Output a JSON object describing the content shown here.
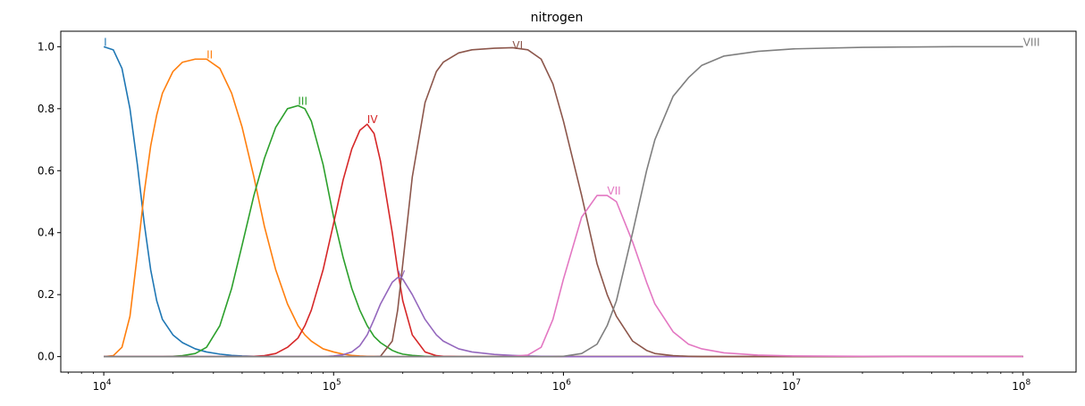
{
  "chart_data": {
    "type": "line",
    "title": "nitrogen",
    "xlabel": "",
    "ylabel": "",
    "x_scale": "log",
    "xlim": [
      6500,
      170000000
    ],
    "ylim": [
      -0.05,
      1.05
    ],
    "grid": false,
    "x_ticks": [
      {
        "value": 10000,
        "mant": "10",
        "exp": "4"
      },
      {
        "value": 100000,
        "mant": "10",
        "exp": "5"
      },
      {
        "value": 1000000,
        "mant": "10",
        "exp": "6"
      },
      {
        "value": 10000000,
        "mant": "10",
        "exp": "7"
      },
      {
        "value": 100000000,
        "mant": "10",
        "exp": "8"
      }
    ],
    "y_ticks": [
      "0.0",
      "0.2",
      "0.4",
      "0.6",
      "0.8",
      "1.0"
    ],
    "x": [
      10000,
      11000,
      12000,
      13000,
      14000,
      15000,
      16000,
      17000,
      18000,
      20000,
      22000,
      25000,
      28000,
      32000,
      36000,
      40000,
      45000,
      50000,
      56000,
      63000,
      70000,
      75000,
      80000,
      90000,
      100000,
      110000,
      120000,
      130000,
      140000,
      150000,
      160000,
      180000,
      190000,
      200000,
      220000,
      250000,
      280000,
      300000,
      350000,
      400000,
      500000,
      600000,
      700000,
      800000,
      900000,
      1000000,
      1200000,
      1400000,
      1550000,
      1700000,
      2000000,
      2300000,
      2500000,
      3000000,
      3500000,
      4000000,
      5000000,
      7000000,
      10000000,
      20000000,
      30000000,
      50000000,
      100000000
    ],
    "series": [
      {
        "name": "I",
        "color": "#1f77b4",
        "label_x": 10000,
        "label_y": 1.0,
        "values": [
          1.0,
          0.99,
          0.93,
          0.8,
          0.62,
          0.43,
          0.28,
          0.18,
          0.12,
          0.07,
          0.045,
          0.025,
          0.015,
          0.008,
          0.004,
          0.002,
          0.001,
          0.0005,
          0,
          0,
          0,
          0,
          0,
          0,
          0,
          0,
          0,
          0,
          0,
          0,
          0,
          0,
          0,
          0,
          0,
          0,
          0,
          0,
          0,
          0,
          0,
          0,
          0,
          0,
          0,
          0,
          0,
          0,
          0,
          0,
          0,
          0,
          0,
          0,
          0,
          0,
          0,
          0,
          0,
          0,
          0,
          0,
          0
        ]
      },
      {
        "name": "II",
        "color": "#ff7f0e",
        "label_x": 28000,
        "label_y": 0.96,
        "values": [
          0,
          0.003,
          0.03,
          0.13,
          0.33,
          0.53,
          0.68,
          0.78,
          0.85,
          0.92,
          0.95,
          0.96,
          0.96,
          0.93,
          0.85,
          0.74,
          0.58,
          0.42,
          0.28,
          0.17,
          0.1,
          0.07,
          0.05,
          0.025,
          0.015,
          0.008,
          0.004,
          0.002,
          0.001,
          0.0005,
          0,
          0,
          0,
          0,
          0,
          0,
          0,
          0,
          0,
          0,
          0,
          0,
          0,
          0,
          0,
          0,
          0,
          0,
          0,
          0,
          0,
          0,
          0,
          0,
          0,
          0,
          0,
          0,
          0,
          0,
          0,
          0,
          0
        ]
      },
      {
        "name": "III",
        "color": "#2ca02c",
        "label_x": 70000,
        "label_y": 0.81,
        "values": [
          0,
          0,
          0,
          0,
          0,
          0,
          0,
          0,
          0,
          0.001,
          0.003,
          0.01,
          0.03,
          0.1,
          0.22,
          0.36,
          0.52,
          0.64,
          0.74,
          0.8,
          0.81,
          0.8,
          0.76,
          0.62,
          0.45,
          0.32,
          0.22,
          0.15,
          0.1,
          0.065,
          0.045,
          0.02,
          0.013,
          0.008,
          0.004,
          0.001,
          0.0005,
          0,
          0,
          0,
          0,
          0,
          0,
          0,
          0,
          0,
          0,
          0,
          0,
          0,
          0,
          0,
          0,
          0,
          0,
          0,
          0,
          0,
          0,
          0,
          0,
          0,
          0
        ]
      },
      {
        "name": "IV",
        "color": "#d62728",
        "label_x": 140000,
        "label_y": 0.75,
        "values": [
          0,
          0,
          0,
          0,
          0,
          0,
          0,
          0,
          0,
          0,
          0,
          0,
          0,
          0,
          0,
          0,
          0.001,
          0.003,
          0.01,
          0.03,
          0.06,
          0.1,
          0.15,
          0.28,
          0.43,
          0.57,
          0.67,
          0.73,
          0.75,
          0.72,
          0.63,
          0.4,
          0.28,
          0.18,
          0.07,
          0.015,
          0.003,
          0.001,
          0,
          0,
          0,
          0,
          0,
          0,
          0,
          0,
          0,
          0,
          0,
          0,
          0,
          0,
          0,
          0,
          0,
          0,
          0,
          0,
          0,
          0,
          0,
          0,
          0
        ]
      },
      {
        "name": "V",
        "color": "#9467bd",
        "label_x": 190000,
        "label_y": 0.25,
        "values": [
          0,
          0,
          0,
          0,
          0,
          0,
          0,
          0,
          0,
          0,
          0,
          0,
          0,
          0,
          0,
          0,
          0,
          0,
          0,
          0,
          0,
          0,
          0,
          0,
          0.002,
          0.006,
          0.015,
          0.035,
          0.07,
          0.12,
          0.17,
          0.24,
          0.255,
          0.25,
          0.2,
          0.12,
          0.07,
          0.05,
          0.025,
          0.015,
          0.007,
          0.004,
          0.002,
          0.001,
          0.0005,
          0,
          0,
          0,
          0,
          0,
          0,
          0,
          0,
          0,
          0,
          0,
          0,
          0,
          0,
          0,
          0,
          0,
          0
        ]
      },
      {
        "name": "VI",
        "color": "#8c564b",
        "label_x": 600000,
        "label_y": 0.99,
        "values": [
          0,
          0,
          0,
          0,
          0,
          0,
          0,
          0,
          0,
          0,
          0,
          0,
          0,
          0,
          0,
          0,
          0,
          0,
          0,
          0,
          0,
          0,
          0,
          0,
          0,
          0,
          0,
          0,
          0,
          0,
          0.001,
          0.05,
          0.15,
          0.3,
          0.58,
          0.82,
          0.92,
          0.95,
          0.98,
          0.99,
          0.995,
          0.997,
          0.99,
          0.96,
          0.88,
          0.76,
          0.52,
          0.3,
          0.2,
          0.13,
          0.05,
          0.02,
          0.01,
          0.003,
          0.001,
          0,
          0,
          0,
          0,
          0,
          0,
          0,
          0
        ]
      },
      {
        "name": "VII",
        "color": "#e377c2",
        "label_x": 1550000,
        "label_y": 0.52,
        "values": [
          0,
          0,
          0,
          0,
          0,
          0,
          0,
          0,
          0,
          0,
          0,
          0,
          0,
          0,
          0,
          0,
          0,
          0,
          0,
          0,
          0,
          0,
          0,
          0,
          0,
          0,
          0,
          0,
          0,
          0,
          0,
          0,
          0,
          0,
          0,
          0,
          0,
          0,
          0,
          0,
          0,
          0.001,
          0.005,
          0.03,
          0.12,
          0.25,
          0.45,
          0.52,
          0.52,
          0.5,
          0.37,
          0.24,
          0.17,
          0.08,
          0.04,
          0.025,
          0.012,
          0.005,
          0.002,
          0.001,
          0,
          0,
          0
        ]
      },
      {
        "name": "VIII",
        "color": "#7f7f7f",
        "label_x": 100000000,
        "label_y": 1.0,
        "values": [
          0,
          0,
          0,
          0,
          0,
          0,
          0,
          0,
          0,
          0,
          0,
          0,
          0,
          0,
          0,
          0,
          0,
          0,
          0,
          0,
          0,
          0,
          0,
          0,
          0,
          0,
          0,
          0,
          0,
          0,
          0,
          0,
          0,
          0,
          0,
          0,
          0,
          0,
          0,
          0,
          0,
          0,
          0,
          0,
          0,
          0.001,
          0.01,
          0.04,
          0.1,
          0.18,
          0.4,
          0.6,
          0.7,
          0.84,
          0.9,
          0.94,
          0.97,
          0.985,
          0.993,
          0.998,
          0.999,
          1.0,
          1.0
        ]
      }
    ]
  }
}
